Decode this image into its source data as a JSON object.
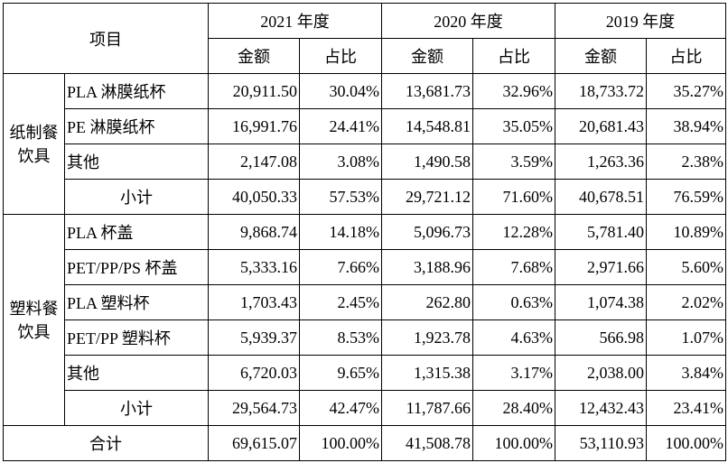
{
  "header": {
    "item_label": "项目",
    "years": [
      "2021 年度",
      "2020 年度",
      "2019 年度"
    ],
    "amount_label": "金额",
    "ratio_label": "占比"
  },
  "groups": [
    {
      "name": "纸制餐饮具",
      "name_lines": [
        "纸制餐",
        "饮具"
      ],
      "rows": [
        {
          "item": "PLA 淋膜纸杯",
          "values": [
            "20,911.50",
            "30.04%",
            "13,681.73",
            "32.96%",
            "18,733.72",
            "35.27%"
          ]
        },
        {
          "item": "PE 淋膜纸杯",
          "values": [
            "16,991.76",
            "24.41%",
            "14,548.81",
            "35.05%",
            "20,681.43",
            "38.94%"
          ]
        },
        {
          "item": "其他",
          "values": [
            "2,147.08",
            "3.08%",
            "1,490.58",
            "3.59%",
            "1,263.36",
            "2.38%"
          ]
        }
      ],
      "subtotal": {
        "label": "小计",
        "values": [
          "40,050.33",
          "57.53%",
          "29,721.12",
          "71.60%",
          "40,678.51",
          "76.59%"
        ]
      }
    },
    {
      "name": "塑料餐饮具",
      "name_lines": [
        "塑料餐",
        "饮具"
      ],
      "rows": [
        {
          "item": "PLA 杯盖",
          "values": [
            "9,868.74",
            "14.18%",
            "5,096.73",
            "12.28%",
            "5,781.40",
            "10.89%"
          ]
        },
        {
          "item": "PET/PP/PS 杯盖",
          "values": [
            "5,333.16",
            "7.66%",
            "3,188.96",
            "7.68%",
            "2,971.66",
            "5.60%"
          ]
        },
        {
          "item": "PLA 塑料杯",
          "values": [
            "1,703.43",
            "2.45%",
            "262.80",
            "0.63%",
            "1,074.38",
            "2.02%"
          ]
        },
        {
          "item": "PET/PP 塑料杯",
          "values": [
            "5,939.37",
            "8.53%",
            "1,923.78",
            "4.63%",
            "566.98",
            "1.07%"
          ]
        },
        {
          "item": "其他",
          "values": [
            "6,720.03",
            "9.65%",
            "1,315.38",
            "3.17%",
            "2,038.00",
            "3.84%"
          ]
        }
      ],
      "subtotal": {
        "label": "小计",
        "values": [
          "29,564.73",
          "42.47%",
          "11,787.66",
          "28.40%",
          "12,432.43",
          "23.41%"
        ]
      }
    }
  ],
  "total": {
    "label": "合计",
    "values": [
      "69,615.07",
      "100.00%",
      "41,508.78",
      "100.00%",
      "53,110.93",
      "100.00%"
    ]
  }
}
